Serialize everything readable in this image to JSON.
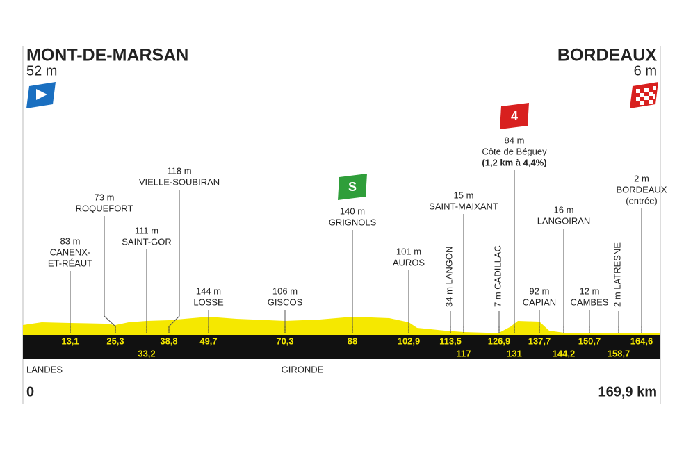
{
  "start": {
    "name": "MONT-DE-MARSAN",
    "altitude": "52 m",
    "distance": "0"
  },
  "finish": {
    "name": "BORDEAUX",
    "altitude": "6 m",
    "distance": "169,9 km"
  },
  "regions": [
    "LANDES",
    "GIRONDE"
  ],
  "waypoints": [
    {
      "lines": [
        "83 m",
        "CANENX-",
        "ET-RÉAUT"
      ],
      "km": "13,1"
    },
    {
      "lines": [
        "73 m",
        "ROQUEFORT"
      ],
      "km": "25,3"
    },
    {
      "lines": [
        "111 m",
        "SAINT-GOR"
      ],
      "km": "33,2"
    },
    {
      "lines": [
        "118 m",
        "VIELLE-SOUBIRAN"
      ],
      "km": "38,8"
    },
    {
      "lines": [
        "144 m",
        "LOSSE"
      ],
      "km": "49,7"
    },
    {
      "lines": [
        "106 m",
        "GISCOS"
      ],
      "km": "70,3"
    },
    {
      "lines": [
        "140 m",
        "GRIGNOLS"
      ],
      "km": "88",
      "badge": "S"
    },
    {
      "lines": [
        "101 m",
        "AUROS"
      ],
      "km": "102,9"
    },
    {
      "lines": [
        "34 m LANGON"
      ],
      "km": "113,5"
    },
    {
      "lines": [
        "15 m",
        "SAINT-MAIXANT"
      ],
      "km": "117"
    },
    {
      "lines": [
        "7 m CADILLAC"
      ],
      "km": "126,9"
    },
    {
      "lines": [
        "84 m",
        "Côte de Béguey",
        "(1,2 km à 4,4%)"
      ],
      "km": "131",
      "badge": "4"
    },
    {
      "lines": [
        "92 m",
        "CAPIAN"
      ],
      "km": "137,7"
    },
    {
      "lines": [
        "16 m",
        "LANGOIRAN"
      ],
      "km": "144,2"
    },
    {
      "lines": [
        "12 m",
        "CAMBES"
      ],
      "km": "150,7"
    },
    {
      "lines": [
        "2 m LATRESNE"
      ],
      "km": "158,7"
    },
    {
      "lines": [
        "2 m",
        "BORDEAUX",
        "(entrée)"
      ],
      "km": "164,6"
    }
  ]
}
